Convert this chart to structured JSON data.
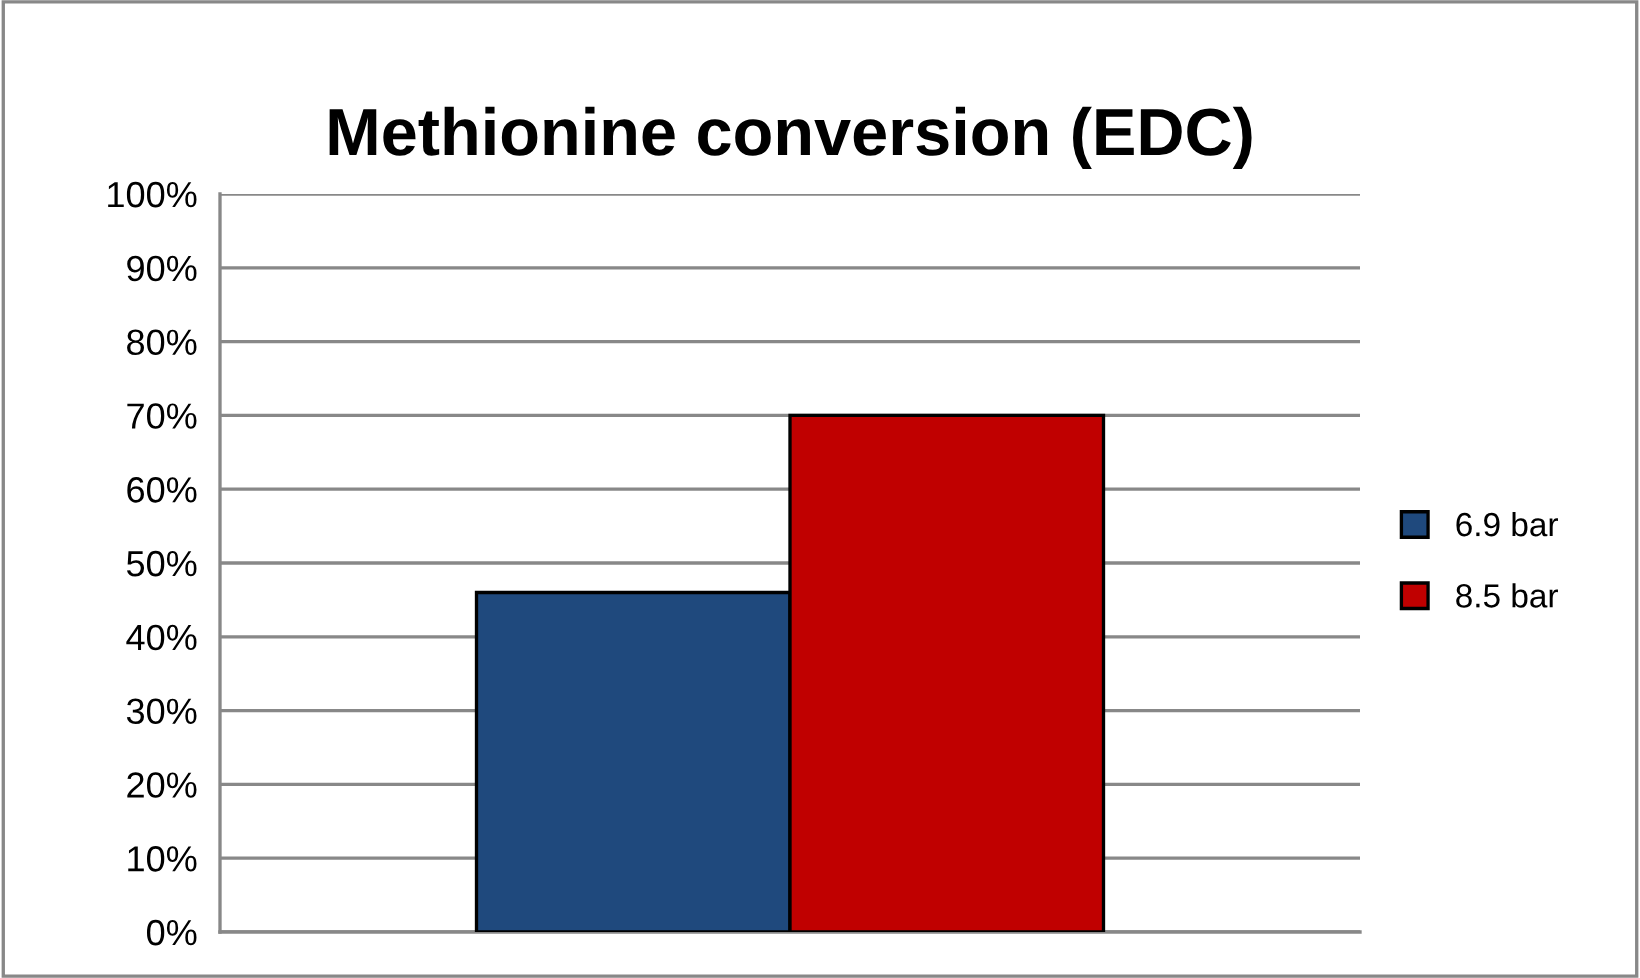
{
  "chart_data": {
    "type": "bar",
    "title": "Methionine conversion (EDC)",
    "categories": [
      null
    ],
    "series": [
      {
        "name": "6.9 bar",
        "color": "#1f497d",
        "values": [
          46
        ]
      },
      {
        "name": "8.5 bar",
        "color": "#c00000",
        "values": [
          70
        ]
      }
    ],
    "ylim": [
      0,
      100
    ],
    "yticks": [
      {
        "value": 0,
        "label": "0%"
      },
      {
        "value": 10,
        "label": "10%"
      },
      {
        "value": 20,
        "label": "20%"
      },
      {
        "value": 30,
        "label": "30%"
      },
      {
        "value": 40,
        "label": "40%"
      },
      {
        "value": 50,
        "label": "50%"
      },
      {
        "value": 60,
        "label": "60%"
      },
      {
        "value": 70,
        "label": "70%"
      },
      {
        "value": 80,
        "label": "80%"
      },
      {
        "value": 90,
        "label": "90%"
      },
      {
        "value": 100,
        "label": "100%"
      }
    ],
    "grid": "y",
    "legend": "right"
  }
}
